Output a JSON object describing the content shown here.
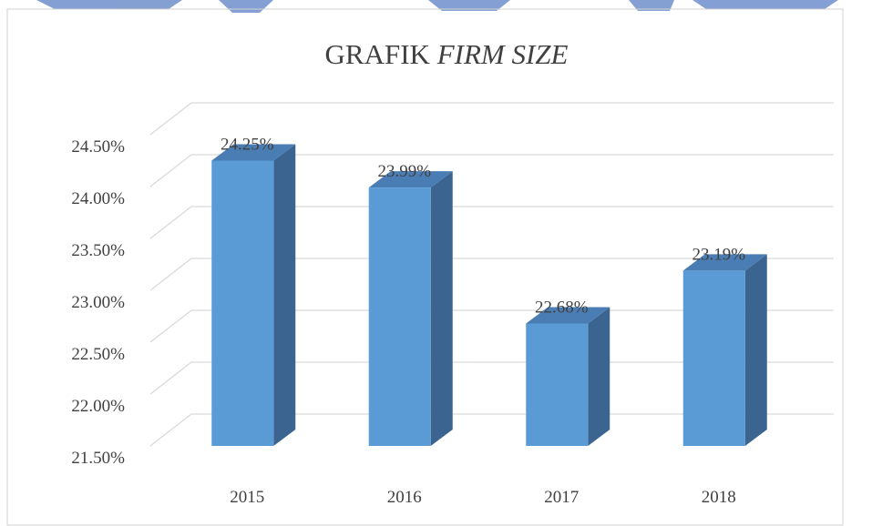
{
  "chart_data": {
    "type": "bar3d",
    "title": "GRAFIK",
    "title_italic": "FIRM SIZE",
    "categories": [
      "2015",
      "2016",
      "2017",
      "2018"
    ],
    "values": [
      24.25,
      23.99,
      22.68,
      23.19
    ],
    "value_labels": [
      "24.25%",
      "23.99%",
      "22.68%",
      "23.19%"
    ],
    "color": "#5b9bd5",
    "ylim": [
      21.5,
      24.5
    ],
    "yticks": [
      {
        "value": 21.5,
        "label": "21.50%"
      },
      {
        "value": 22.0,
        "label": "22.00%"
      },
      {
        "value": 22.5,
        "label": "22.50%"
      },
      {
        "value": 23.0,
        "label": "23.00%"
      },
      {
        "value": 23.5,
        "label": "23.50%"
      },
      {
        "value": 24.0,
        "label": "24.00%"
      },
      {
        "value": 24.5,
        "label": "24.50%"
      }
    ],
    "grid": true
  }
}
